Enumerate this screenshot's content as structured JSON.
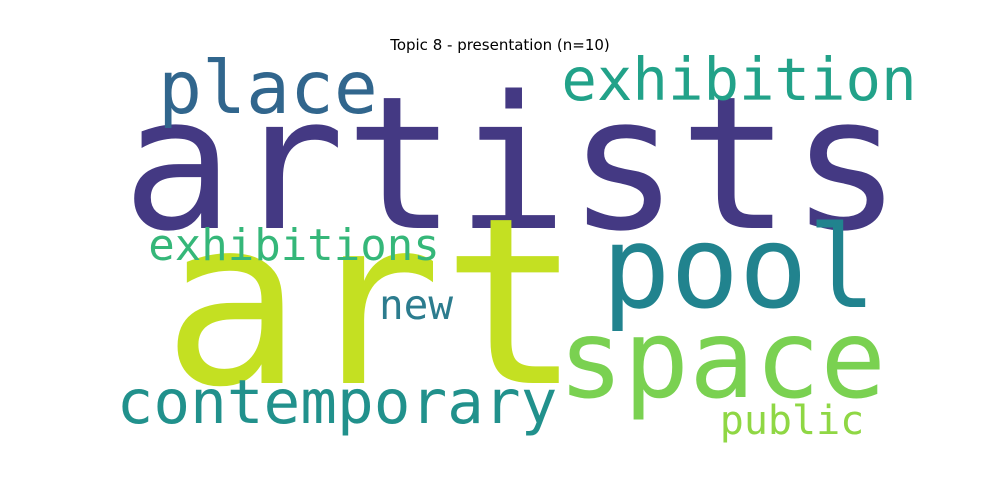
{
  "title": "Topic 8 - presentation (n=10)",
  "words": [
    {
      "text": "artists",
      "color": "#443983"
    },
    {
      "text": "art",
      "color": "#c4e022"
    },
    {
      "text": "pool",
      "color": "#21838e"
    },
    {
      "text": "space",
      "color": "#7ad151"
    },
    {
      "text": "place",
      "color": "#31668d"
    },
    {
      "text": "exhibition",
      "color": "#22a289"
    },
    {
      "text": "exhibitions",
      "color": "#35b779"
    },
    {
      "text": "contemporary",
      "color": "#21918c"
    },
    {
      "text": "new",
      "color": "#2c7c8e"
    },
    {
      "text": "public",
      "color": "#8fd744"
    }
  ]
}
